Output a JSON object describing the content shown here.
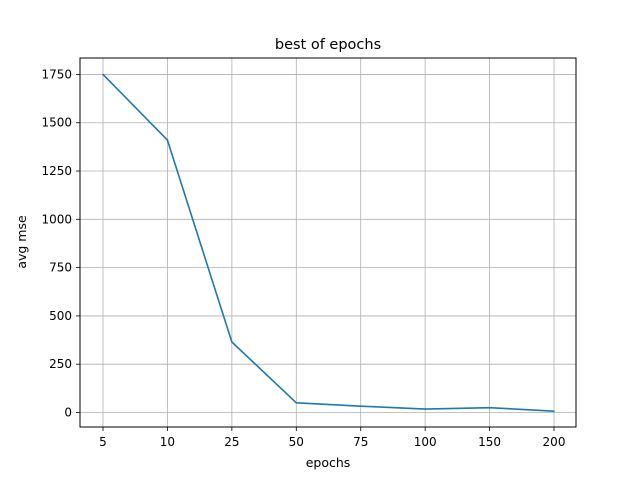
{
  "chart_data": {
    "type": "line",
    "title": "best of epochs",
    "xlabel": "epochs",
    "ylabel": "avg mse",
    "categories": [
      "5",
      "10",
      "25",
      "50",
      "75",
      "100",
      "150",
      "200"
    ],
    "series": [
      {
        "values": [
          1750,
          1410,
          365,
          50,
          33,
          18,
          25,
          7
        ],
        "color": "#1f77b4"
      }
    ],
    "yticks": [
      0,
      250,
      500,
      750,
      1000,
      1250,
      1500,
      1750
    ],
    "ytick_labels": [
      "0",
      "250",
      "500",
      "750",
      "1000",
      "1250",
      "1500",
      "1750"
    ],
    "ylim": [
      -75,
      1835
    ],
    "grid": true
  }
}
